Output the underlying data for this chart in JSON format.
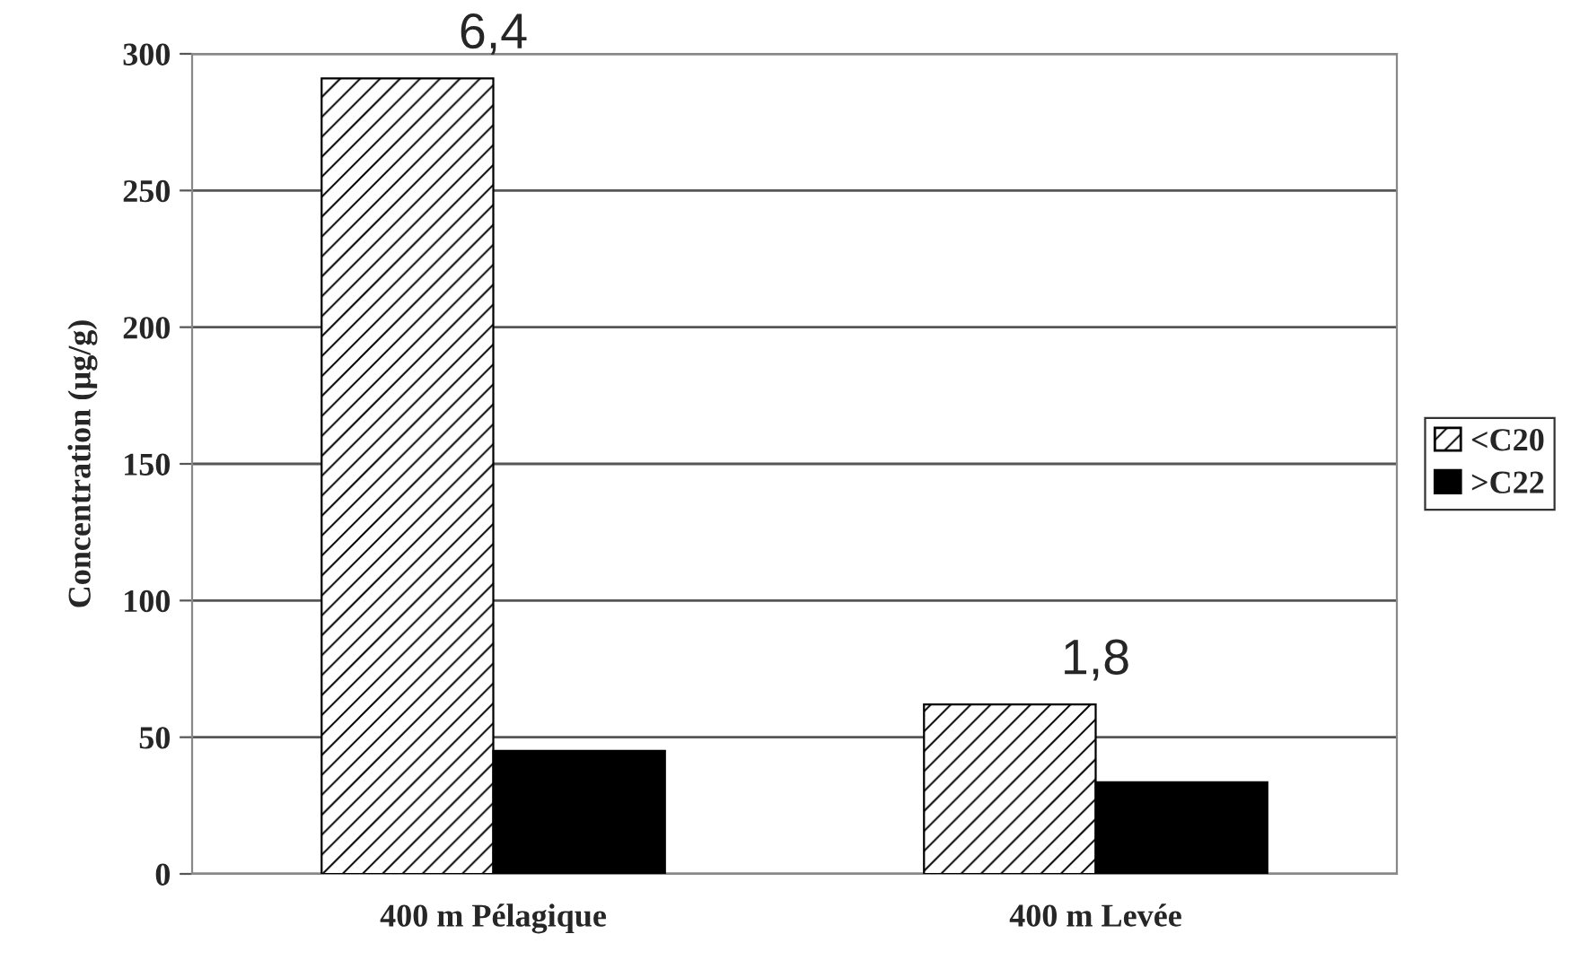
{
  "chart_data": {
    "type": "bar",
    "ylabel": "Concentration (µg/g)",
    "categories": [
      "400 m Pélagique",
      "400 m Levée"
    ],
    "series": [
      {
        "name": "<C20",
        "color": "#000000",
        "values": [
          291,
          62
        ]
      },
      {
        "name": ">C22",
        "color": "#000000",
        "values": [
          45,
          33.5
        ]
      }
    ],
    "ylim": [
      0,
      300
    ],
    "yticks": [
      0,
      50,
      100,
      150,
      200,
      250,
      300
    ],
    "grid": "y",
    "legend": "right",
    "annotations": [
      {
        "text": "6,4",
        "x": "400 m Pélagique",
        "y": 291
      },
      {
        "text": "1,8",
        "x": "400 m Levée",
        "y": 62
      }
    ]
  }
}
